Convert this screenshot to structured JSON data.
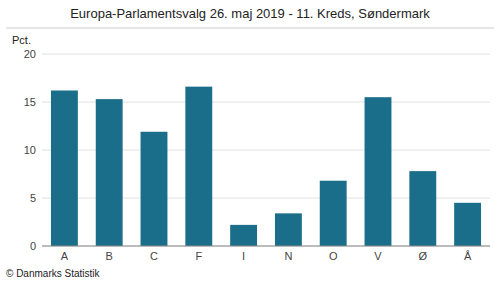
{
  "chart_data": {
    "type": "bar",
    "title": "Europa-Parlamentsvalg 26. maj 2019 - 11. Kreds, Søndermark",
    "y_label": "Pct.",
    "footer": "© Danmarks Statistik",
    "categories": [
      "A",
      "B",
      "C",
      "F",
      "I",
      "N",
      "O",
      "V",
      "Ø",
      "Å"
    ],
    "values": [
      16.2,
      15.3,
      11.9,
      16.6,
      2.2,
      3.4,
      6.8,
      15.5,
      7.8,
      4.5
    ],
    "color": "#1a6e8a",
    "ylim": [
      0,
      20
    ],
    "yticks": [
      0,
      5,
      10,
      15,
      20
    ],
    "grid": true
  }
}
